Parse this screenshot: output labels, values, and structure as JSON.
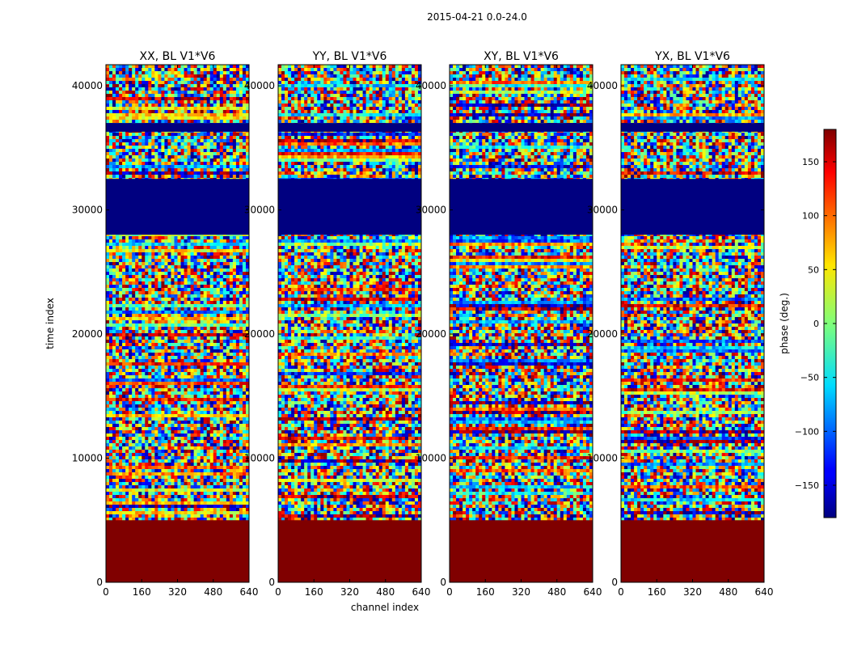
{
  "figure": {
    "suptitle": "2015-04-21 0.0-24.0",
    "xlabel": "channel index",
    "ylabel": "time index",
    "colorbar_label": "phase (deg.)"
  },
  "chart_data": {
    "type": "heatmap",
    "colormap": "jet",
    "value": "phase",
    "vmin": -180,
    "vmax": 180,
    "xlim": [
      0,
      640
    ],
    "ylim": [
      0,
      41700
    ],
    "xticks": [
      0,
      160,
      320,
      480,
      640
    ],
    "yticks": [
      0,
      10000,
      20000,
      30000,
      40000
    ],
    "colorbar_ticks": [
      150,
      100,
      50,
      0,
      -50,
      -100,
      -150
    ],
    "colorbar_tick_labels": [
      "150",
      "100",
      "50",
      "0",
      "−50",
      "−100",
      "−150"
    ],
    "panels": [
      {
        "title": "XX, BL V1*V6"
      },
      {
        "title": "YY, BL V1*V6"
      },
      {
        "title": "XY, BL V1*V6"
      },
      {
        "title": "YX, BL V1*V6"
      }
    ],
    "constant_bands": [
      {
        "t_start": 0,
        "t_end": 5000,
        "phase": 180
      },
      {
        "t_start": 28000,
        "t_end": 32500,
        "phase": -180
      },
      {
        "t_start": 36300,
        "t_end": 37000,
        "phase": -180
      }
    ]
  }
}
